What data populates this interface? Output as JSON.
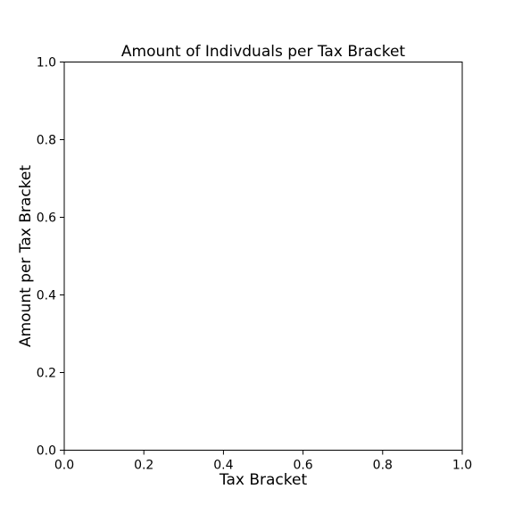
{
  "chart_data": {
    "type": "bar",
    "title": "Amount of Indivduals per Tax Bracket",
    "xlabel": "Tax Bracket",
    "ylabel": "Amount per Tax Bracket",
    "xlim": [
      0.0,
      1.0
    ],
    "ylim": [
      0.0,
      1.0
    ],
    "xticks": [
      "0.0",
      "0.2",
      "0.4",
      "0.6",
      "0.8",
      "1.0"
    ],
    "yticks": [
      "0.0",
      "0.2",
      "0.4",
      "0.6",
      "0.8",
      "1.0"
    ],
    "categories": [],
    "values": [],
    "grid": false,
    "legend": false
  },
  "colors": {
    "background": "#ffffff",
    "axes": "#000000",
    "text": "#000000"
  }
}
